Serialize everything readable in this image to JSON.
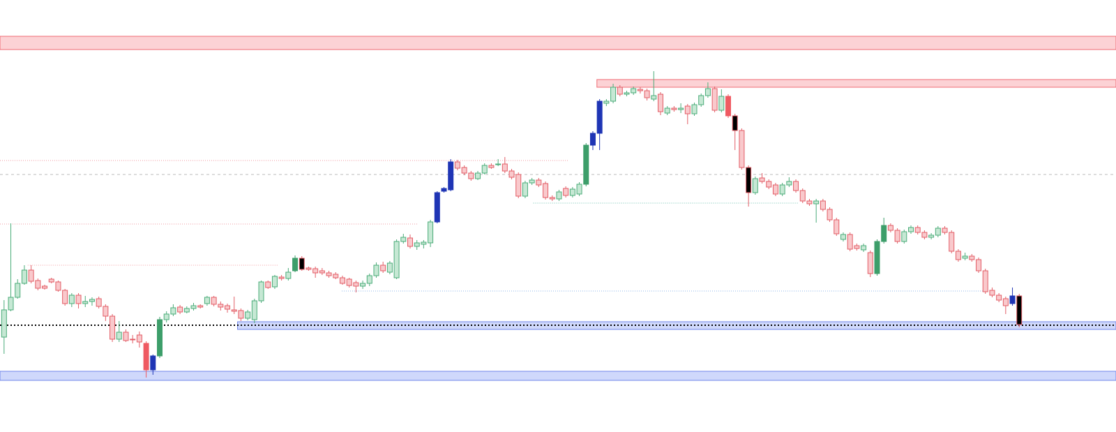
{
  "chart_data": {
    "type": "candlestick",
    "ylim": [
      0,
      620
    ],
    "xlim": [
      -0.6,
      164.3
    ],
    "up_fill": "#c6e8d4",
    "up_stroke": "#4aab78",
    "down_fill": "#f9c9cc",
    "down_stroke": "#e25c65",
    "candles": [
      [
        137,
        190,
        113,
        176
      ],
      [
        176,
        300,
        174,
        194
      ],
      [
        194,
        220,
        192,
        214
      ],
      [
        214,
        240,
        212,
        233
      ],
      [
        233,
        240,
        214,
        217
      ],
      [
        218,
        221,
        204,
        207
      ],
      [
        210,
        212,
        205,
        207
      ],
      [
        220,
        222,
        214,
        216
      ],
      [
        216,
        218,
        202,
        204
      ],
      [
        204,
        206,
        182,
        185
      ],
      [
        185,
        200,
        180,
        197
      ],
      [
        197,
        200,
        178,
        185
      ],
      [
        185,
        196,
        180,
        188
      ],
      [
        188,
        194,
        182,
        191
      ],
      [
        192,
        195,
        178,
        181
      ],
      [
        181,
        184,
        160,
        167
      ],
      [
        167,
        170,
        130,
        134
      ],
      [
        134,
        160,
        130,
        144
      ],
      [
        144,
        148,
        130,
        132
      ],
      [
        134,
        140,
        128,
        133
      ],
      [
        140,
        145,
        122,
        130
      ],
      [
        128,
        131,
        79,
        90
      ],
      [
        90,
        112,
        83,
        110
      ],
      [
        110,
        166,
        107,
        162
      ],
      [
        162,
        174,
        158,
        170
      ],
      [
        170,
        184,
        167,
        179
      ],
      [
        180,
        183,
        170,
        173
      ],
      [
        173,
        181,
        171,
        178
      ],
      [
        178,
        186,
        175,
        182
      ],
      [
        182,
        184,
        178,
        180
      ],
      [
        185,
        196,
        182,
        194
      ],
      [
        194,
        196,
        181,
        184
      ],
      [
        184,
        188,
        175,
        180
      ],
      [
        182,
        185,
        172,
        177
      ],
      [
        176,
        195,
        170,
        174
      ],
      [
        175,
        178,
        160,
        164
      ],
      [
        164,
        176,
        161,
        173
      ],
      [
        162,
        192,
        157,
        189
      ],
      [
        189,
        218,
        186,
        216
      ],
      [
        216,
        218,
        206,
        208
      ],
      [
        209,
        226,
        206,
        224
      ],
      [
        223,
        226,
        218,
        221
      ],
      [
        221,
        236,
        218,
        230
      ],
      [
        232,
        254,
        230,
        250
      ],
      [
        250,
        253,
        232,
        234
      ],
      [
        236,
        238,
        232,
        234
      ],
      [
        235,
        238,
        222,
        229
      ],
      [
        232,
        236,
        226,
        229
      ],
      [
        229,
        232,
        222,
        225
      ],
      [
        227,
        230,
        220,
        222
      ],
      [
        222,
        225,
        212,
        214
      ],
      [
        220,
        222,
        208,
        211
      ],
      [
        215,
        218,
        201,
        210
      ],
      [
        210,
        218,
        206,
        214
      ],
      [
        214,
        228,
        210,
        225
      ],
      [
        225,
        244,
        222,
        240
      ],
      [
        240,
        245,
        229,
        232
      ],
      [
        230,
        246,
        227,
        243
      ],
      [
        222,
        277,
        220,
        274
      ],
      [
        274,
        285,
        271,
        280
      ],
      [
        279,
        284,
        264,
        267
      ],
      [
        267,
        276,
        262,
        272
      ],
      [
        270,
        276,
        264,
        273
      ],
      [
        272,
        305,
        266,
        302
      ],
      [
        302,
        346,
        300,
        344
      ],
      [
        346,
        352,
        344,
        350
      ],
      [
        348,
        392,
        346,
        388
      ],
      [
        388,
        391,
        376,
        379
      ],
      [
        380,
        383,
        369,
        372
      ],
      [
        372,
        375,
        361,
        364
      ],
      [
        364,
        375,
        362,
        372
      ],
      [
        372,
        386,
        370,
        383
      ],
      [
        383,
        386,
        378,
        380
      ],
      [
        384,
        392,
        382,
        385
      ],
      [
        385,
        395,
        372,
        375
      ],
      [
        375,
        378,
        363,
        366
      ],
      [
        370,
        373,
        336,
        339
      ],
      [
        339,
        361,
        336,
        358
      ],
      [
        358,
        365,
        355,
        362
      ],
      [
        362,
        365,
        352,
        355
      ],
      [
        357,
        360,
        334,
        337
      ],
      [
        337,
        340,
        332,
        335
      ],
      [
        335,
        348,
        332,
        345
      ],
      [
        350,
        353,
        337,
        340
      ],
      [
        340,
        352,
        337,
        349
      ],
      [
        342,
        359,
        339,
        356
      ],
      [
        356,
        415,
        353,
        412
      ],
      [
        412,
        432,
        405,
        429
      ],
      [
        429,
        478,
        405,
        475
      ],
      [
        472,
        478,
        468,
        475
      ],
      [
        475,
        500,
        472,
        495
      ],
      [
        495,
        498,
        482,
        485
      ],
      [
        485,
        490,
        482,
        487
      ],
      [
        487,
        496,
        484,
        493
      ],
      [
        492,
        495,
        486,
        490
      ],
      [
        490,
        493,
        476,
        480
      ],
      [
        478,
        518,
        475,
        483
      ],
      [
        485,
        488,
        455,
        460
      ],
      [
        458,
        468,
        455,
        465
      ],
      [
        465,
        468,
        460,
        463
      ],
      [
        463,
        472,
        458,
        465
      ],
      [
        468,
        471,
        442,
        457
      ],
      [
        457,
        473,
        454,
        470
      ],
      [
        470,
        486,
        467,
        483
      ],
      [
        483,
        502,
        480,
        493
      ],
      [
        493,
        496,
        459,
        462
      ],
      [
        462,
        492,
        459,
        482
      ],
      [
        482,
        485,
        451,
        454
      ],
      [
        454,
        457,
        405,
        433
      ],
      [
        433,
        436,
        377,
        380
      ],
      [
        380,
        383,
        324,
        344
      ],
      [
        344,
        367,
        341,
        364
      ],
      [
        365,
        372,
        357,
        360
      ],
      [
        360,
        363,
        349,
        352
      ],
      [
        355,
        358,
        339,
        342
      ],
      [
        342,
        358,
        339,
        355
      ],
      [
        355,
        366,
        352,
        360
      ],
      [
        360,
        363,
        344,
        347
      ],
      [
        347,
        350,
        329,
        332
      ],
      [
        332,
        335,
        325,
        328
      ],
      [
        328,
        335,
        301,
        332
      ],
      [
        332,
        335,
        317,
        320
      ],
      [
        320,
        323,
        302,
        305
      ],
      [
        305,
        308,
        282,
        285
      ],
      [
        277,
        287,
        274,
        284
      ],
      [
        284,
        287,
        260,
        263
      ],
      [
        268,
        271,
        261,
        264
      ],
      [
        262,
        271,
        259,
        268
      ],
      [
        258,
        261,
        223,
        228
      ],
      [
        228,
        277,
        225,
        274
      ],
      [
        274,
        308,
        271,
        297
      ],
      [
        297,
        300,
        287,
        290
      ],
      [
        290,
        293,
        271,
        274
      ],
      [
        274,
        291,
        271,
        288
      ],
      [
        288,
        297,
        285,
        294
      ],
      [
        294,
        297,
        284,
        287
      ],
      [
        287,
        290,
        277,
        280
      ],
      [
        280,
        286,
        277,
        283
      ],
      [
        283,
        296,
        280,
        293
      ],
      [
        293,
        296,
        284,
        287
      ],
      [
        287,
        290,
        257,
        260
      ],
      [
        260,
        263,
        245,
        248
      ],
      [
        250,
        258,
        247,
        253
      ],
      [
        253,
        256,
        245,
        248
      ],
      [
        248,
        251,
        229,
        232
      ],
      [
        232,
        235,
        199,
        202
      ],
      [
        204,
        208,
        194,
        197
      ],
      [
        197,
        200,
        187,
        190
      ],
      [
        192,
        195,
        170,
        182
      ],
      [
        185,
        208,
        182,
        196
      ],
      [
        196,
        199,
        151,
        155
      ]
    ],
    "fills": [
      null,
      null,
      null,
      null,
      null,
      null,
      null,
      null,
      null,
      null,
      null,
      null,
      null,
      null,
      null,
      null,
      null,
      null,
      null,
      null,
      null,
      "#ef5a62",
      "#1f35b5",
      "#3d9e6a",
      null,
      null,
      null,
      null,
      null,
      null,
      null,
      null,
      null,
      null,
      null,
      null,
      null,
      null,
      null,
      null,
      null,
      null,
      null,
      "#3d9e6a",
      "#000000",
      null,
      null,
      null,
      null,
      null,
      null,
      null,
      null,
      null,
      null,
      null,
      null,
      null,
      null,
      null,
      null,
      null,
      null,
      null,
      "#1f35b5",
      "#1f35b5",
      "#1f35b5",
      null,
      null,
      null,
      null,
      null,
      null,
      null,
      null,
      null,
      null,
      null,
      null,
      null,
      null,
      null,
      null,
      null,
      null,
      null,
      "#3d9e6a",
      "#1f35b5",
      "#1f35b5",
      null,
      null,
      null,
      null,
      null,
      null,
      null,
      null,
      null,
      null,
      null,
      null,
      null,
      null,
      null,
      null,
      null,
      null,
      "#ef5a62",
      "#000000",
      null,
      "#000000",
      null,
      null,
      null,
      null,
      null,
      null,
      null,
      null,
      null,
      null,
      null,
      null,
      null,
      null,
      null,
      null,
      null,
      null,
      "#3d9e6a",
      "#3d9e6a",
      null,
      null,
      null,
      null,
      null,
      null,
      null,
      null,
      null,
      null,
      null,
      null,
      null,
      null,
      null,
      null,
      null,
      null,
      "#1f35b5",
      "#000000"
    ],
    "zones": [
      {
        "y": [
          549,
          568
        ],
        "color": "#fcd2d5",
        "stroke": "#ef6b74"
      },
      {
        "y": [
          495,
          506
        ],
        "x_from": 87.6,
        "color": "#fcd2d5",
        "stroke": "#ef6b74"
      },
      {
        "y": [
          148,
          159
        ],
        "x_from": 34.5,
        "color": "#cfd8fb",
        "stroke": "#6f86ea"
      },
      {
        "y": [
          75,
          88
        ],
        "color": "#cfd8fb",
        "stroke": "#6f86ea"
      }
    ],
    "levels": [
      {
        "y": 390,
        "x_to": 83.4,
        "color": "#f29aa0",
        "dash": "1 2"
      },
      {
        "y": 370,
        "color": "#bbbbbb",
        "dash": "4 4"
      },
      {
        "y": 329,
        "x_from": 78.2,
        "x_to": 117.4,
        "color": "#6cc1b0",
        "dash": "1 2"
      },
      {
        "y": 299,
        "x_to": 61.2,
        "color": "#f29aa0",
        "dash": "1 2"
      },
      {
        "y": 240,
        "x_from": 3.5,
        "x_to": 40.5,
        "color": "#f29aa0",
        "dash": "1 2"
      },
      {
        "y": 203,
        "x_from": 49.9,
        "x_to": 144.7,
        "color": "#8fb4e8",
        "dash": "1 2"
      },
      {
        "y": 154,
        "color": "#000000",
        "dash": "2 3",
        "width": 2
      }
    ]
  }
}
